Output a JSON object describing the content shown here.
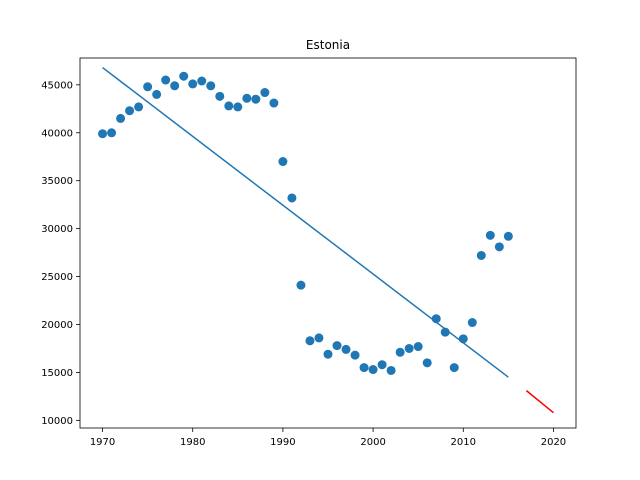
{
  "chart_data": {
    "type": "scatter",
    "title": "Estonia",
    "xlabel": "",
    "ylabel": "",
    "xlim": [
      1967.5,
      2022.5
    ],
    "ylim": [
      9200,
      47800
    ],
    "xticks": [
      1970,
      1980,
      1990,
      2000,
      2010,
      2020
    ],
    "yticks": [
      10000,
      15000,
      20000,
      25000,
      30000,
      35000,
      40000,
      45000
    ],
    "grid": false,
    "colors": {
      "points": "#1f77b4",
      "trend": "#1f77b4",
      "forecast": "#ff0000"
    },
    "points": {
      "x": [
        1970,
        1971,
        1972,
        1973,
        1974,
        1975,
        1976,
        1977,
        1978,
        1979,
        1980,
        1981,
        1982,
        1983,
        1984,
        1985,
        1986,
        1987,
        1988,
        1989,
        1990,
        1991,
        1992,
        1993,
        1994,
        1995,
        1996,
        1997,
        1998,
        1999,
        2000,
        2001,
        2002,
        2003,
        2004,
        2005,
        2006,
        2007,
        2008,
        2009,
        2010,
        2011,
        2012,
        2013,
        2014,
        2015
      ],
      "y": [
        39900,
        40000,
        41500,
        42300,
        42700,
        44800,
        44000,
        45500,
        44900,
        45900,
        45100,
        45400,
        44900,
        43800,
        42800,
        42700,
        43600,
        43500,
        44200,
        43100,
        37000,
        33200,
        24100,
        18300,
        18600,
        16900,
        17800,
        17400,
        16800,
        15500,
        15300,
        15800,
        15200,
        17100,
        17500,
        17700,
        16000,
        20600,
        19200,
        15500,
        18500,
        20200,
        27200,
        29300,
        28100,
        29200
      ]
    },
    "trend_line": {
      "x": [
        1970,
        2015
      ],
      "y": [
        46800,
        14500
      ]
    },
    "forecast_line": {
      "x": [
        2017,
        2020
      ],
      "y": [
        13100,
        10800
      ]
    }
  }
}
